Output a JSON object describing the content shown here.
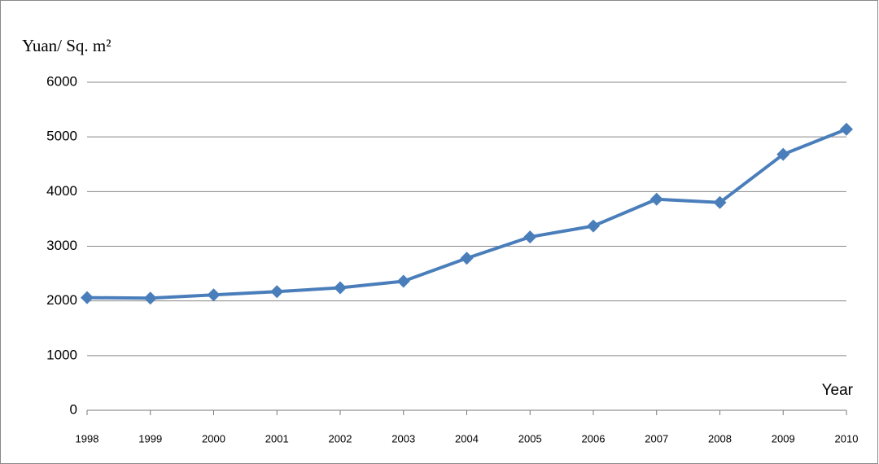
{
  "chart_data": {
    "type": "line",
    "y_label": "Yuan/ Sq. m²",
    "x_label": "Year",
    "categories": [
      "1998",
      "1999",
      "2000",
      "2001",
      "2002",
      "2003",
      "2004",
      "2005",
      "2006",
      "2007",
      "2008",
      "2009",
      "2010"
    ],
    "series": [
      {
        "color": "#4a7ebb",
        "values": [
          2060,
          2050,
          2110,
          2170,
          2240,
          2360,
          2780,
          3170,
          3370,
          3860,
          3800,
          4680,
          5140
        ]
      }
    ],
    "ylim": [
      0,
      6000
    ],
    "yticks": [
      0,
      1000,
      2000,
      3000,
      4000,
      5000,
      6000
    ],
    "grid": true
  }
}
